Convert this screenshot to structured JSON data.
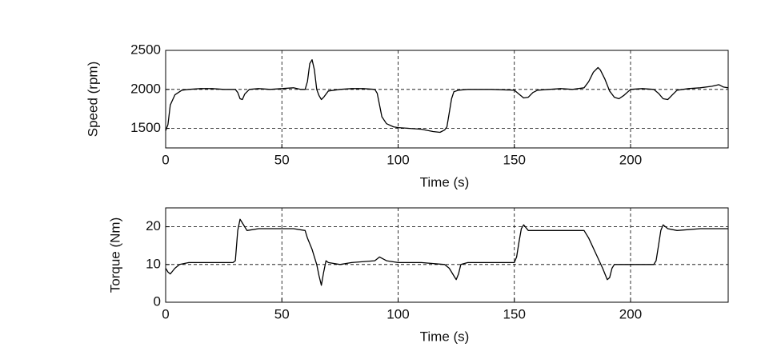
{
  "chart_data": [
    {
      "type": "line",
      "ylabel": "Speed (rpm)",
      "xlabel": "Time (s)",
      "color": "#000000",
      "grid": true,
      "xlim": [
        0,
        242
      ],
      "ylim": [
        1250,
        2500
      ],
      "xticks": [
        0,
        50,
        100,
        150,
        200
      ],
      "yticks": [
        1500,
        2000,
        2500
      ],
      "x": [
        0,
        1,
        2,
        4,
        7,
        10,
        15,
        20,
        25,
        30,
        31,
        32,
        33,
        34,
        36,
        40,
        45,
        50,
        55,
        58,
        60,
        61,
        62,
        63,
        64,
        65,
        66,
        67,
        68,
        70,
        75,
        80,
        85,
        90,
        91,
        92,
        93,
        95,
        98,
        100,
        105,
        110,
        115,
        118,
        120,
        121,
        122,
        123,
        124,
        126,
        130,
        140,
        150,
        152,
        154,
        156,
        158,
        160,
        165,
        170,
        175,
        180,
        182,
        184,
        186,
        187,
        189,
        191,
        193,
        195,
        197,
        200,
        205,
        210,
        212,
        214,
        216,
        218,
        220,
        225,
        230,
        235,
        238,
        240,
        242
      ],
      "values": [
        1470,
        1550,
        1800,
        1930,
        1990,
        2000,
        2010,
        2010,
        2000,
        2000,
        1960,
        1880,
        1870,
        1940,
        2000,
        2010,
        2000,
        2010,
        2020,
        2000,
        2000,
        2100,
        2330,
        2380,
        2250,
        2000,
        1920,
        1870,
        1900,
        1980,
        2000,
        2010,
        2010,
        2000,
        1950,
        1800,
        1650,
        1560,
        1520,
        1510,
        1500,
        1490,
        1460,
        1450,
        1480,
        1520,
        1700,
        1880,
        1970,
        1990,
        2000,
        2000,
        1990,
        1940,
        1890,
        1900,
        1960,
        1990,
        2000,
        2010,
        2000,
        2020,
        2100,
        2220,
        2280,
        2250,
        2130,
        1980,
        1900,
        1880,
        1920,
        2000,
        2010,
        2000,
        1950,
        1880,
        1870,
        1930,
        1990,
        2010,
        2020,
        2040,
        2060,
        2030,
        2020
      ]
    },
    {
      "type": "line",
      "ylabel": "Torque (Nm)",
      "xlabel": "Time (s)",
      "color": "#000000",
      "grid": true,
      "xlim": [
        0,
        242
      ],
      "ylim": [
        0,
        25
      ],
      "xticks": [
        0,
        50,
        100,
        150,
        200
      ],
      "yticks": [
        0,
        10,
        20
      ],
      "x": [
        0,
        1,
        2,
        4,
        6,
        10,
        20,
        29,
        30,
        31,
        32,
        33,
        34,
        35,
        40,
        50,
        55,
        60,
        61,
        63,
        64,
        65,
        66,
        67,
        68,
        69,
        70,
        75,
        80,
        90,
        92,
        95,
        100,
        110,
        120,
        122,
        124,
        125,
        126,
        127,
        130,
        140,
        150,
        151,
        152,
        153,
        154,
        156,
        160,
        170,
        180,
        182,
        185,
        188,
        190,
        191,
        192,
        193,
        195,
        200,
        210,
        211,
        212,
        213,
        214,
        216,
        220,
        230,
        240,
        242
      ],
      "values": [
        9,
        8,
        7.5,
        9,
        10,
        10.5,
        10.5,
        10.5,
        11,
        19,
        22,
        21,
        20,
        19,
        19.5,
        19.5,
        19.5,
        19,
        17,
        14,
        12,
        10,
        7,
        4.5,
        8,
        11,
        10.5,
        10,
        10.5,
        11,
        12,
        11,
        10.5,
        10.5,
        10,
        9,
        7,
        6,
        7.5,
        10,
        10.5,
        10.5,
        10.5,
        12,
        16,
        19.5,
        20.5,
        19,
        19,
        19,
        19,
        17,
        13,
        9,
        6,
        6.5,
        9,
        10,
        10,
        10,
        10,
        11,
        15,
        19,
        20.5,
        19.5,
        19,
        19.5,
        19.5,
        19.5
      ]
    }
  ]
}
